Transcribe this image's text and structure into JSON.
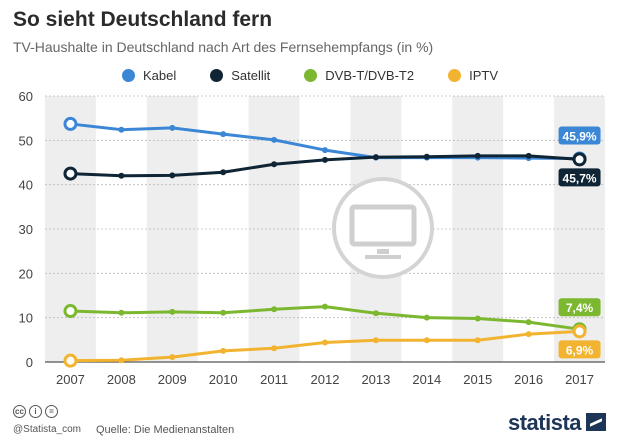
{
  "header": {
    "title": "So sieht Deutschland fern",
    "subtitle": "TV-Haushalte in Deutschland nach Art des Fernsehempfangs (in %)"
  },
  "footer": {
    "handle": "@Statista_com",
    "source": "Quelle: Die Medienanstalten",
    "brand": "statista",
    "license_icons": [
      "cc-icon",
      "by-icon",
      "nd-icon"
    ]
  },
  "colors": {
    "Kabel": "#3b87d6",
    "Satellit": "#0f2535",
    "DVB-T/DVB-T2": "#7cb82f",
    "IPTV": "#f2b330",
    "band": "#eeeeee"
  },
  "chart_data": {
    "type": "line",
    "categories": [
      "2007",
      "2008",
      "2009",
      "2010",
      "2011",
      "2012",
      "2013",
      "2014",
      "2015",
      "2016",
      "2017"
    ],
    "ylim": [
      0,
      60
    ],
    "yticks": [
      0,
      10,
      20,
      30,
      40,
      50,
      60
    ],
    "grid": "alternating vertical bands",
    "legend": "top-center",
    "series": [
      {
        "name": "Kabel",
        "values": [
          53.7,
          52.4,
          52.8,
          51.4,
          50.1,
          47.8,
          46.1,
          46.1,
          46.1,
          46.0,
          45.9
        ],
        "end_label": "45,9%"
      },
      {
        "name": "Satellit",
        "values": [
          42.5,
          42.0,
          42.1,
          42.8,
          44.6,
          45.6,
          46.2,
          46.3,
          46.5,
          46.5,
          45.7
        ],
        "end_label": "45,7%"
      },
      {
        "name": "DVB-T/DVB-T2",
        "values": [
          11.5,
          11.1,
          11.3,
          11.1,
          11.9,
          12.5,
          11.0,
          10.0,
          9.8,
          9.0,
          7.4
        ],
        "end_label": "7,4%"
      },
      {
        "name": "IPTV",
        "values": [
          0.3,
          0.4,
          1.1,
          2.5,
          3.1,
          4.4,
          4.9,
          4.9,
          4.9,
          6.3,
          6.9
        ],
        "end_label": "6,9%"
      }
    ]
  }
}
